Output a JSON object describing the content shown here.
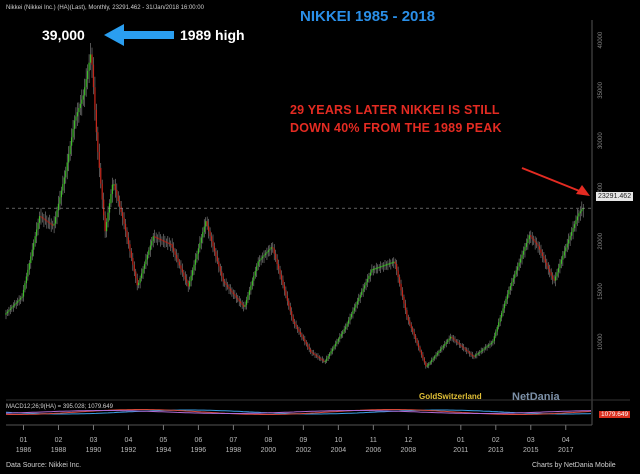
{
  "header": {
    "symbol_line": "Nikkei (Nikkei Inc.) (HA)(Last), Monthly, 23291.462 - 31/Jan/2018 16:00:00"
  },
  "title": "NIKKEI 1985 - 2018",
  "annotations": {
    "peak_value": "39,000",
    "peak_label": "1989 high",
    "note_line1": "29 YEARS  LATER NIKKEI IS STILL",
    "note_line2": "DOWN 40% FROM  THE 1989 PEAK",
    "last_price": "23291.462",
    "watermark": "GoldSwitzerland",
    "brand": "NetDania"
  },
  "macd": {
    "label": "MACD12;26;9(HA) = 395.028; 1079.649",
    "value_tag": "1079.649"
  },
  "footer": {
    "left": "Data Source: Nikkei Inc.",
    "right": "Charts by NetDania Mobile"
  },
  "colors": {
    "background": "#000000",
    "up_candle": "#3fbf2a",
    "down_candle": "#c4271b",
    "title": "#2a8fe8",
    "note": "#e42b22",
    "arrow_blue": "#2a9ef0"
  },
  "chart_data": {
    "type": "line",
    "title": "NIKKEI 1985 - 2018",
    "series": [
      {
        "x": [
          1985.0,
          1986.0,
          1987.0,
          1987.8,
          1988.5,
          1989.0,
          1989.5,
          1989.95,
          1990.3,
          1990.75,
          1991.2,
          1991.8,
          1992.6,
          1993.5,
          1994.5,
          1995.5,
          1996.5,
          1997.5,
          1998.7,
          1999.5,
          2000.3,
          2001.5,
          2002.5,
          2003.3,
          2004.5,
          2006.0,
          2007.3,
          2008.0,
          2009.1,
          2010.5,
          2011.8,
          2012.9,
          2013.8,
          2015.0,
          2015.5,
          2016.4,
          2017.0,
          2017.8,
          2018.05
        ],
        "y": [
          12700,
          14500,
          22500,
          21500,
          27000,
          32000,
          34500,
          38900,
          29500,
          21000,
          26000,
          22000,
          15500,
          20500,
          19700,
          15500,
          22000,
          16000,
          13400,
          18000,
          19500,
          12000,
          9000,
          8000,
          11500,
          17200,
          18000,
          12500,
          7500,
          10500,
          8500,
          10000,
          15000,
          20600,
          19500,
          16000,
          19000,
          22700,
          23291
        ]
      }
    ],
    "xlim": [
      1985,
      2018.5
    ],
    "ylim": [
      7000,
      42000
    ],
    "y_ticks": [
      10000,
      15000,
      20000,
      25000,
      30000,
      35000,
      40000
    ],
    "x_tick_labels": [
      {
        "x": 1986,
        "top": "01",
        "bottom": "1986"
      },
      {
        "x": 1988,
        "top": "02",
        "bottom": "1988"
      },
      {
        "x": 1990,
        "top": "03",
        "bottom": "1990"
      },
      {
        "x": 1992,
        "top": "04",
        "bottom": "1992"
      },
      {
        "x": 1994,
        "top": "05",
        "bottom": "1994"
      },
      {
        "x": 1996,
        "top": "06",
        "bottom": "1996"
      },
      {
        "x": 1998,
        "top": "07",
        "bottom": "1998"
      },
      {
        "x": 2000,
        "top": "08",
        "bottom": "2000"
      },
      {
        "x": 2002,
        "top": "09",
        "bottom": "2002"
      },
      {
        "x": 2004,
        "top": "10",
        "bottom": "2004"
      },
      {
        "x": 2006,
        "top": "11",
        "bottom": "2006"
      },
      {
        "x": 2008,
        "top": "12",
        "bottom": "2008"
      },
      {
        "x": 2011,
        "top": "01",
        "bottom": "2011"
      },
      {
        "x": 2013,
        "top": "02",
        "bottom": "2013"
      },
      {
        "x": 2015,
        "top": "03",
        "bottom": "2015"
      },
      {
        "x": 2017,
        "top": "04",
        "bottom": "2017"
      }
    ],
    "grid": false,
    "y_axis_side": "right"
  }
}
